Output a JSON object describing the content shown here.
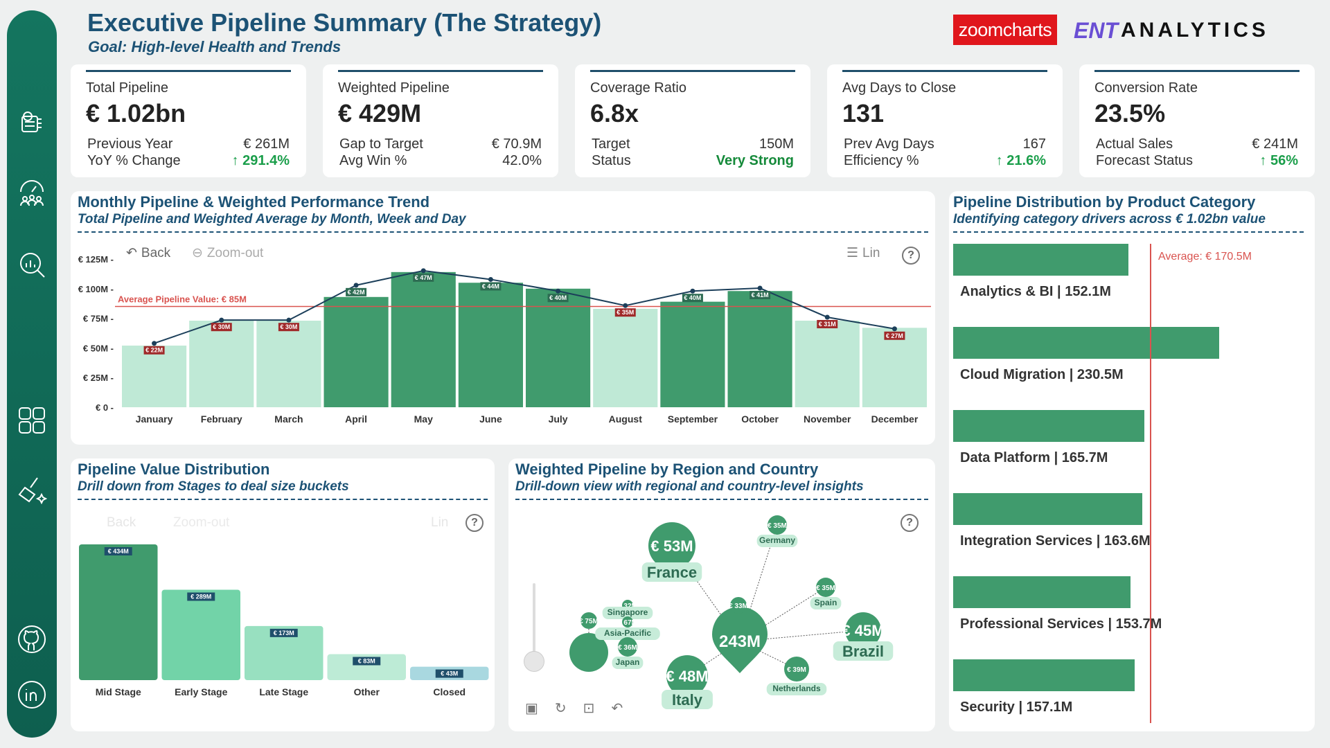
{
  "header": {
    "title": "Executive Pipeline Summary (The Strategy)",
    "subtitle": "Goal: High-level Health and Trends",
    "logo_left": "zoomcharts",
    "logo_right_a": "ENT",
    "logo_right_b": "ANALYTICS"
  },
  "sidebar": {
    "items": [
      {
        "icon": "settings-panel-icon"
      },
      {
        "icon": "team-performance-icon"
      },
      {
        "icon": "analytics-search-icon"
      },
      {
        "icon": "grid-icon"
      },
      {
        "icon": "clean-brush-icon"
      },
      {
        "icon": "github-icon"
      },
      {
        "icon": "linkedin-icon"
      }
    ]
  },
  "kpis": [
    {
      "label": "Total Pipeline",
      "value": "€ 1.02bn",
      "r1_label": "Previous Year",
      "r1_value": "€ 261M",
      "r2_label": "YoY % Change",
      "r2_value": "↑ 291.4%"
    },
    {
      "label": "Weighted Pipeline",
      "value": "€ 429M",
      "r1_label": "Gap to Target",
      "r1_value": "€ 70.9M",
      "r2_label": "Avg Win %",
      "r2_value": "42.0%"
    },
    {
      "label": "Coverage Ratio",
      "value": "6.8x",
      "r1_label": "Target",
      "r1_value": "150M",
      "r2_label": "Status",
      "r2_value": "Very Strong"
    },
    {
      "label": "Avg Days to Close",
      "value": "131",
      "r1_label": "Prev Avg Days",
      "r1_value": "167",
      "r2_label": "Efficiency %",
      "r2_value": "↑ 21.6%"
    },
    {
      "label": "Conversion Rate",
      "value": "23.5%",
      "r1_label": "Actual Sales",
      "r1_value": "€ 241M",
      "r2_label": "Forecast Status",
      "r2_value": "↑ 56%"
    }
  ],
  "monthly": {
    "title": "Monthly Pipeline & Weighted Performance Trend",
    "subtitle": "Total Pipeline and Weighted Average by Month, Week and Day",
    "back": "Back",
    "zoom_out": "Zoom-out",
    "lin": "Lin",
    "help": "?"
  },
  "pvd": {
    "title": "Pipeline Value Distribution",
    "subtitle": "Drill down from Stages to deal size buckets",
    "back": "Back",
    "zoom_out": "Zoom-out",
    "lin": "Lin",
    "help": "?"
  },
  "region": {
    "title": "Weighted Pipeline by Region and Country",
    "subtitle": "Drill-down view with regional and country-level insights",
    "help": "?"
  },
  "category": {
    "title": "Pipeline Distribution by Product Category",
    "subtitle": "Identifying category drivers across € 1.02bn value",
    "average_label": "Average: € 170.5M"
  },
  "chart_data": [
    {
      "type": "bar",
      "name": "monthly-trend",
      "categories": [
        "January",
        "February",
        "March",
        "April",
        "May",
        "June",
        "July",
        "August",
        "September",
        "October",
        "November",
        "December"
      ],
      "series": [
        {
          "values": [
            52,
            73,
            73,
            93,
            114,
            105,
            100,
            83,
            89,
            98,
            73,
            67
          ]
        },
        {
          "values": [
            22,
            30,
            30,
            42,
            47,
            44,
            40,
            35,
            40,
            41,
            31,
            27
          ],
          "labels": [
            "€ 22M",
            "€ 30M",
            "€ 30M",
            "€ 42M",
            "€ 47M",
            "€ 44M",
            "€ 40M",
            "€ 35M",
            "€ 40M",
            "€ 41M",
            "€ 31M",
            "€ 27M"
          ]
        }
      ],
      "y_ticks": [
        "€ 0",
        "€ 25M",
        "€ 50M",
        "€ 75M",
        "€ 100M",
        "€ 125M"
      ],
      "ylim": [
        0,
        130
      ],
      "reference_line": {
        "value": 85,
        "label": "Average Pipeline Value: € 85M"
      },
      "highlighted": [
        false,
        false,
        false,
        true,
        true,
        true,
        true,
        false,
        true,
        true,
        false,
        false
      ]
    },
    {
      "type": "bar",
      "name": "value-distribution",
      "categories": [
        "Mid Stage",
        "Early Stage",
        "Late Stage",
        "Other",
        "Closed"
      ],
      "values": [
        434,
        289,
        173,
        83,
        43
      ],
      "labels": [
        "€ 434M",
        "€ 289M",
        "€ 173M",
        "€ 83M",
        "€ 43M"
      ],
      "colors": [
        "#409b6d",
        "#72d3a8",
        "#98e0c0",
        "#bdebd6",
        "#a9d8e0"
      ]
    },
    {
      "type": "bar",
      "name": "product-category",
      "categories": [
        "Analytics & BI",
        "Cloud Migration",
        "Data Platform",
        "Integration Services",
        "Professional Services",
        "Security"
      ],
      "values": [
        152.1,
        230.5,
        165.7,
        163.6,
        153.7,
        157.1
      ],
      "labels": [
        "Analytics & BI | 152.1M",
        "Cloud Migration | 230.5M",
        "Data Platform | 165.7M",
        "Integration Services | 163.6M",
        "Professional Services | 153.7M",
        "Security | 157.1M"
      ],
      "average": 170.5
    }
  ],
  "network": {
    "center": {
      "value": "243M"
    },
    "nodes": [
      {
        "name": "France",
        "value": "€ 53M"
      },
      {
        "name": "Germany",
        "value": "€ 35M"
      },
      {
        "name": "Spain",
        "value": "€ 35M"
      },
      {
        "name": "Brazil",
        "value": "€ 45M"
      },
      {
        "name": "Netherlands",
        "value": "€ 39M"
      },
      {
        "name": "Italy",
        "value": "€ 48M"
      },
      {
        "name": "",
        "value": "€ 33M"
      },
      {
        "name": "Singapore",
        "value": "€ 32M"
      },
      {
        "name": "Asia-Pacific",
        "value": "€ 67M"
      },
      {
        "name": "Japan",
        "value": "€ 36M"
      },
      {
        "name": "",
        "value": "€ 75M"
      }
    ]
  }
}
